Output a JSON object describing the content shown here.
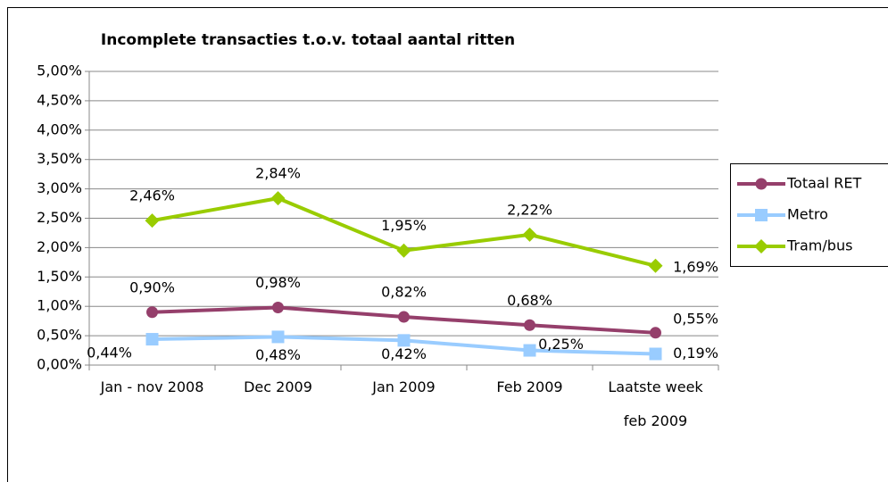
{
  "chart_data": {
    "type": "line",
    "title": "Incomplete transacties t.o.v. totaal aantal ritten",
    "categories": [
      "Jan - nov 2008",
      "Dec 2009",
      "Jan 2009",
      "Feb 2009",
      "Laatste week feb 2009"
    ],
    "series": [
      {
        "name": "Totaal RET",
        "color": "#953f6b",
        "marker": "circle",
        "values": [
          0.9,
          0.98,
          0.82,
          0.68,
          0.55
        ],
        "value_labels": [
          "0,90%",
          "0,98%",
          "0,82%",
          "0,68%",
          "0,55%"
        ]
      },
      {
        "name": "Metro",
        "color": "#99ccff",
        "marker": "square",
        "values": [
          0.44,
          0.48,
          0.42,
          0.25,
          0.19
        ],
        "value_labels": [
          "0,44%",
          "0,48%",
          "0,42%",
          "0,25%",
          "0,19%"
        ]
      },
      {
        "name": "Tram/bus",
        "color": "#99cc00",
        "marker": "diamond",
        "values": [
          2.46,
          2.84,
          1.95,
          2.22,
          1.69
        ],
        "value_labels": [
          "2,46%",
          "2,84%",
          "1,95%",
          "2,22%",
          "1,69%"
        ]
      }
    ],
    "ylim": [
      0,
      5
    ],
    "yticks": [
      {
        "value": 0,
        "label": "0,00%"
      },
      {
        "value": 0.5,
        "label": "0,50%"
      },
      {
        "value": 1,
        "label": "1,00%"
      },
      {
        "value": 1.5,
        "label": "1,50%"
      },
      {
        "value": 2,
        "label": "2,00%"
      },
      {
        "value": 2.5,
        "label": "2,50%"
      },
      {
        "value": 3,
        "label": "3,00%"
      },
      {
        "value": 3.5,
        "label": "3,50%"
      },
      {
        "value": 4,
        "label": "4,00%"
      },
      {
        "value": 4.5,
        "label": "4,50%"
      },
      {
        "value": 5,
        "label": "5,00%"
      }
    ],
    "grid": true,
    "legend": "right"
  }
}
